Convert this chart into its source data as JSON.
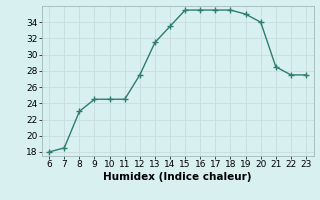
{
  "x": [
    6,
    7,
    8,
    9,
    10,
    11,
    12,
    13,
    14,
    15,
    16,
    17,
    18,
    19,
    20,
    21,
    22,
    23
  ],
  "y": [
    18,
    18.5,
    23,
    24.5,
    24.5,
    24.5,
    27.5,
    31.5,
    33.5,
    35.5,
    35.5,
    35.5,
    35.5,
    35.0,
    34.0,
    28.5,
    27.5,
    27.5
  ],
  "xlabel": "Humidex (Indice chaleur)",
  "ylim": [
    17.5,
    36.0
  ],
  "xlim": [
    5.5,
    23.5
  ],
  "yticks": [
    18,
    20,
    22,
    24,
    26,
    28,
    30,
    32,
    34
  ],
  "xticks": [
    6,
    7,
    8,
    9,
    10,
    11,
    12,
    13,
    14,
    15,
    16,
    17,
    18,
    19,
    20,
    21,
    22,
    23
  ],
  "line_color": "#2e7d6e",
  "marker_color": "#2e7d6e",
  "bg_color": "#d8f0f0",
  "grid_color": "#c8dede",
  "label_fontsize": 7.5,
  "tick_fontsize": 6.5
}
